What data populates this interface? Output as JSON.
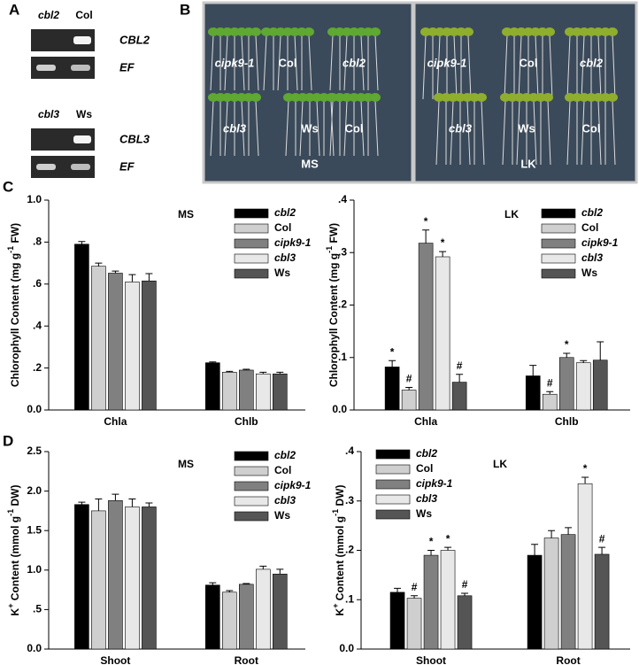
{
  "figure": {
    "panel_labels": [
      "A",
      "B",
      "C",
      "D"
    ],
    "gels": [
      {
        "lanes": [
          "cbl2",
          "Col"
        ],
        "genes": [
          "CBL2",
          "EF"
        ]
      },
      {
        "lanes": [
          "cbl3",
          "Ws"
        ],
        "genes": [
          "CBL3",
          "EF"
        ]
      }
    ],
    "plates": [
      {
        "genotypes": [
          "cipk9-1",
          "Col",
          "cbl2",
          "cbl3",
          "Ws",
          "Col"
        ],
        "medium": "MS"
      },
      {
        "genotypes": [
          "cipk9-1",
          "Col",
          "cbl2",
          "cbl3",
          "Ws",
          "Col"
        ],
        "medium": "LK"
      }
    ]
  },
  "chart_data": [
    {
      "type": "bar",
      "title": "MS",
      "ylabel": [
        "Chlorophyll Content (mg g",
        "-1",
        " FW)"
      ],
      "categories": [
        "Chla",
        "Chlb"
      ],
      "series": [
        {
          "name": "cbl2",
          "italic": true,
          "color": "#000000",
          "values": [
            0.79,
            0.225
          ],
          "errors": [
            0.013,
            0.004
          ]
        },
        {
          "name": "Col",
          "italic": false,
          "color": "#cfcfcf",
          "values": [
            0.685,
            0.18
          ],
          "errors": [
            0.015,
            0.004
          ]
        },
        {
          "name": "cipk9-1",
          "italic": true,
          "color": "#808080",
          "values": [
            0.652,
            0.19
          ],
          "errors": [
            0.01,
            0.004
          ]
        },
        {
          "name": "cbl3",
          "italic": true,
          "color": "#e8e8e8",
          "values": [
            0.61,
            0.172
          ],
          "errors": [
            0.035,
            0.008
          ]
        },
        {
          "name": "Ws",
          "italic": false,
          "color": "#555555",
          "values": [
            0.615,
            0.172
          ],
          "errors": [
            0.035,
            0.008
          ]
        }
      ],
      "ylim": [
        0,
        1.0
      ],
      "yticks": [
        {
          "value": 0,
          "label": "0.0"
        },
        {
          "value": 0.2,
          "label": ".2"
        },
        {
          "value": 0.4,
          "label": ".4"
        },
        {
          "value": 0.6,
          "label": ".6"
        },
        {
          "value": 0.8,
          "label": ".8"
        },
        {
          "value": 1.0,
          "label": "1.0"
        }
      ]
    },
    {
      "type": "bar",
      "title": "LK",
      "ylabel": [
        "Chlorophyll Content (mg g",
        "-1",
        " FW)"
      ],
      "categories": [
        "Chla",
        "Chlb"
      ],
      "series": [
        {
          "name": "cbl2",
          "italic": true,
          "color": "#000000",
          "values": [
            0.082,
            0.065
          ],
          "errors": [
            0.012,
            0.02
          ],
          "annotations": [
            "*",
            null
          ]
        },
        {
          "name": "Col",
          "italic": false,
          "color": "#cfcfcf",
          "values": [
            0.038,
            0.03
          ],
          "errors": [
            0.005,
            0.005
          ],
          "annotations": [
            "#",
            "#"
          ]
        },
        {
          "name": "cipk9-1",
          "italic": true,
          "color": "#808080",
          "values": [
            0.318,
            0.1
          ],
          "errors": [
            0.025,
            0.008
          ],
          "annotations": [
            "*",
            "*"
          ]
        },
        {
          "name": "cbl3",
          "italic": true,
          "color": "#e8e8e8",
          "values": [
            0.292,
            0.09
          ],
          "errors": [
            0.01,
            0.004
          ],
          "annotations": [
            "*",
            null
          ]
        },
        {
          "name": "Ws",
          "italic": false,
          "color": "#555555",
          "values": [
            0.053,
            0.095
          ],
          "errors": [
            0.015,
            0.035
          ],
          "annotations": [
            "#",
            null
          ]
        }
      ],
      "ylim": [
        0,
        0.4
      ],
      "yticks": [
        {
          "value": 0,
          "label": "0.0"
        },
        {
          "value": 0.1,
          "label": ".1"
        },
        {
          "value": 0.2,
          "label": ".2"
        },
        {
          "value": 0.3,
          "label": ".3"
        },
        {
          "value": 0.4,
          "label": ".4"
        }
      ]
    },
    {
      "type": "bar",
      "title": "MS",
      "ylabel": [
        "K",
        "+",
        " Content (mmol g",
        "-1",
        " DW)"
      ],
      "categories": [
        "Shoot",
        "Root"
      ],
      "series": [
        {
          "name": "cbl2",
          "italic": true,
          "color": "#000000",
          "values": [
            1.83,
            0.81
          ],
          "errors": [
            0.03,
            0.03
          ]
        },
        {
          "name": "Col",
          "italic": false,
          "color": "#cfcfcf",
          "values": [
            1.75,
            0.72
          ],
          "errors": [
            0.15,
            0.02
          ]
        },
        {
          "name": "cipk9-1",
          "italic": true,
          "color": "#808080",
          "values": [
            1.88,
            0.82
          ],
          "errors": [
            0.08,
            0.01
          ]
        },
        {
          "name": "cbl3",
          "italic": true,
          "color": "#e8e8e8",
          "values": [
            1.8,
            1.01
          ],
          "errors": [
            0.1,
            0.04
          ]
        },
        {
          "name": "Ws",
          "italic": false,
          "color": "#555555",
          "values": [
            1.8,
            0.95
          ],
          "errors": [
            0.05,
            0.06
          ]
        }
      ],
      "ylim": [
        0,
        2.5
      ],
      "yticks": [
        {
          "value": 0,
          "label": "0.0"
        },
        {
          "value": 0.5,
          "label": ".5"
        },
        {
          "value": 1.0,
          "label": "1.0"
        },
        {
          "value": 1.5,
          "label": "1.5"
        },
        {
          "value": 2.0,
          "label": "2.0"
        },
        {
          "value": 2.5,
          "label": "2.5"
        }
      ]
    },
    {
      "type": "bar",
      "title": "LK",
      "ylabel": [
        "K",
        "+",
        " Content (mmol g",
        "-1",
        " DW)"
      ],
      "categories": [
        "Shoot",
        "Root"
      ],
      "series": [
        {
          "name": "cbl2",
          "italic": true,
          "color": "#000000",
          "values": [
            0.115,
            0.19
          ],
          "errors": [
            0.008,
            0.022
          ],
          "annotations": [
            null,
            null
          ]
        },
        {
          "name": "Col",
          "italic": false,
          "color": "#cfcfcf",
          "values": [
            0.103,
            0.225
          ],
          "errors": [
            0.005,
            0.015
          ],
          "annotations": [
            "#",
            null
          ]
        },
        {
          "name": "cipk9-1",
          "italic": true,
          "color": "#808080",
          "values": [
            0.19,
            0.232
          ],
          "errors": [
            0.01,
            0.014
          ],
          "annotations": [
            "*",
            null
          ]
        },
        {
          "name": "cbl3",
          "italic": true,
          "color": "#e8e8e8",
          "values": [
            0.2,
            0.335
          ],
          "errors": [
            0.006,
            0.013
          ],
          "annotations": [
            "*",
            "*"
          ]
        },
        {
          "name": "Ws",
          "italic": false,
          "color": "#555555",
          "values": [
            0.108,
            0.192
          ],
          "errors": [
            0.005,
            0.014
          ],
          "annotations": [
            "#",
            "#"
          ]
        }
      ],
      "ylim": [
        0,
        0.4
      ],
      "yticks": [
        {
          "value": 0,
          "label": "0.0"
        },
        {
          "value": 0.1,
          "label": ".1"
        },
        {
          "value": 0.2,
          "label": ".2"
        },
        {
          "value": 0.3,
          "label": ".3"
        },
        {
          "value": 0.4,
          "label": ".4"
        }
      ]
    }
  ]
}
